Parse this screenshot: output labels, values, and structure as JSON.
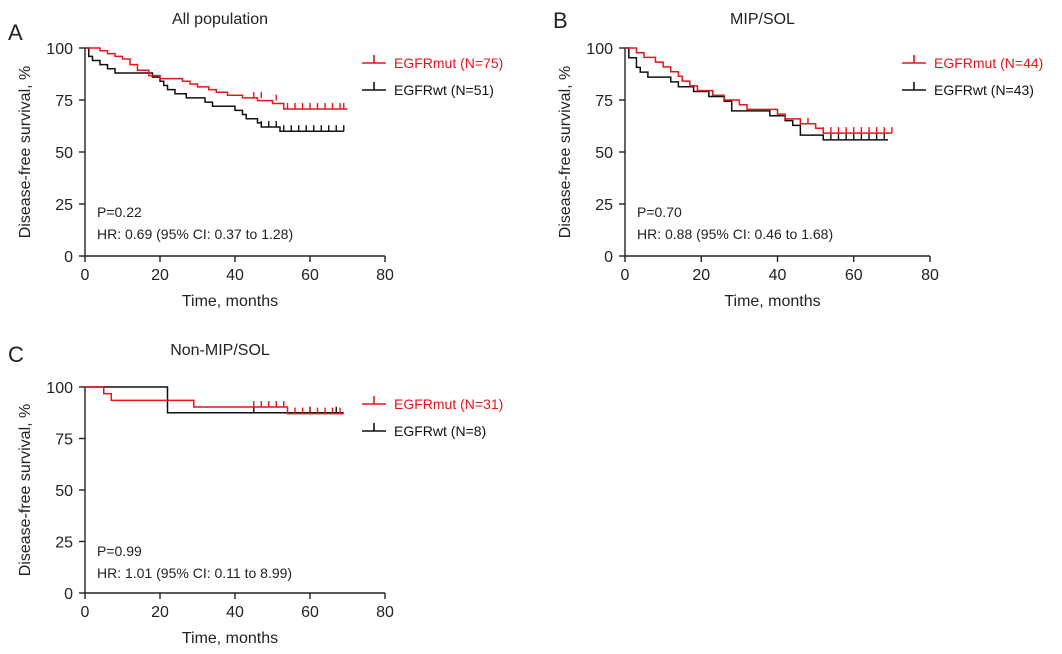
{
  "colors": {
    "mut": "#e8141c",
    "wt": "#111111",
    "axis": "#222222"
  },
  "chart_data": [
    {
      "type": "line",
      "panel_label": "A",
      "title": "All population",
      "xlabel": "Time, months",
      "ylabel": "Disease-free survival, %",
      "xlim": [
        0,
        80
      ],
      "ylim": [
        0,
        100
      ],
      "xticks": [
        "0",
        "20",
        "40",
        "60",
        "80"
      ],
      "yticks": [
        "0",
        "25",
        "50",
        "75",
        "100"
      ],
      "legend_position": "top-right",
      "annotations": [
        "P=0.22",
        "HR: 0.69 (95% CI: 0.37 to 1.28)"
      ],
      "series": [
        {
          "name": "EGFRmut (N=75)",
          "color": "#e8141c",
          "steps": [
            [
              0,
              100
            ],
            [
              4,
              98.7
            ],
            [
              6,
              97.3
            ],
            [
              8,
              96
            ],
            [
              10,
              94.7
            ],
            [
              12,
              92
            ],
            [
              14,
              89.3
            ],
            [
              17,
              86.7
            ],
            [
              20,
              85.3
            ],
            [
              26,
              84
            ],
            [
              28,
              82.7
            ],
            [
              30,
              81.3
            ],
            [
              33,
              80
            ],
            [
              35,
              78.7
            ],
            [
              38,
              77.3
            ],
            [
              42,
              76
            ],
            [
              46,
              74.7
            ],
            [
              50,
              73.3
            ],
            [
              53,
              70.7
            ],
            [
              70,
              70.7
            ]
          ],
          "censors": [
            [
              45,
              76
            ],
            [
              47,
              76
            ],
            [
              51,
              74.7
            ],
            [
              54,
              70.7
            ],
            [
              56,
              70.7
            ],
            [
              58,
              70.7
            ],
            [
              60,
              70.7
            ],
            [
              62,
              70.7
            ],
            [
              64,
              70.7
            ],
            [
              66,
              70.7
            ],
            [
              68,
              70.7
            ],
            [
              69,
              70.7
            ]
          ]
        },
        {
          "name": "EGFRwt (N=51)",
          "color": "#111111",
          "steps": [
            [
              0,
              100
            ],
            [
              1,
              96
            ],
            [
              2,
              94
            ],
            [
              4,
              92
            ],
            [
              6,
              90
            ],
            [
              8,
              88
            ],
            [
              18,
              86
            ],
            [
              20,
              84
            ],
            [
              21,
              82
            ],
            [
              22,
              80
            ],
            [
              24,
              78
            ],
            [
              27,
              76
            ],
            [
              32,
              74
            ],
            [
              34,
              72
            ],
            [
              40,
              70
            ],
            [
              42,
              68
            ],
            [
              43,
              66
            ],
            [
              46,
              64
            ],
            [
              47,
              62
            ],
            [
              52,
              60
            ],
            [
              69,
              60
            ]
          ],
          "censors": [
            [
              47,
              62
            ],
            [
              49,
              62
            ],
            [
              51,
              62
            ],
            [
              53,
              60
            ],
            [
              55,
              60
            ],
            [
              57,
              60
            ],
            [
              59,
              60
            ],
            [
              61,
              60
            ],
            [
              63,
              60
            ],
            [
              65,
              60
            ],
            [
              67,
              60
            ],
            [
              69,
              60
            ]
          ]
        }
      ]
    },
    {
      "type": "line",
      "panel_label": "B",
      "title": "MIP/SOL",
      "xlabel": "Time, months",
      "ylabel": "Disease-free survival, %",
      "xlim": [
        0,
        80
      ],
      "ylim": [
        0,
        100
      ],
      "xticks": [
        "0",
        "20",
        "40",
        "60",
        "80"
      ],
      "yticks": [
        "0",
        "25",
        "50",
        "75",
        "100"
      ],
      "legend_position": "top-right",
      "annotations": [
        "P=0.70",
        "HR: 0.88 (95% CI: 0.46 to 1.68)"
      ],
      "series": [
        {
          "name": "EGFRmut (N=44)",
          "color": "#e8141c",
          "steps": [
            [
              0,
              100
            ],
            [
              3,
              97.7
            ],
            [
              5,
              95.5
            ],
            [
              8,
              93.2
            ],
            [
              10,
              90.9
            ],
            [
              12,
              88.6
            ],
            [
              14,
              86.4
            ],
            [
              15,
              84.1
            ],
            [
              17,
              81.8
            ],
            [
              19,
              79.5
            ],
            [
              23,
              77.3
            ],
            [
              26,
              75
            ],
            [
              30,
              72.7
            ],
            [
              32,
              70.5
            ],
            [
              40,
              68.2
            ],
            [
              42,
              65.9
            ],
            [
              46,
              63.6
            ],
            [
              50,
              61.4
            ],
            [
              52,
              59.1
            ],
            [
              70,
              59.1
            ]
          ],
          "censors": [
            [
              48,
              63.6
            ],
            [
              52,
              59.1
            ],
            [
              54,
              59.1
            ],
            [
              56,
              59.1
            ],
            [
              58,
              59.1
            ],
            [
              60,
              59.1
            ],
            [
              62,
              59.1
            ],
            [
              64,
              59.1
            ],
            [
              66,
              59.1
            ],
            [
              68,
              59.1
            ],
            [
              70,
              59.1
            ]
          ]
        },
        {
          "name": "EGFRwt (N=43)",
          "color": "#111111",
          "steps": [
            [
              0,
              100
            ],
            [
              1,
              95.3
            ],
            [
              3,
              90.7
            ],
            [
              4,
              88.4
            ],
            [
              6,
              86
            ],
            [
              12,
              83.7
            ],
            [
              14,
              81.4
            ],
            [
              18,
              79.1
            ],
            [
              22,
              76.7
            ],
            [
              26,
              74.4
            ],
            [
              28,
              69.8
            ],
            [
              38,
              67.4
            ],
            [
              42,
              65.1
            ],
            [
              44,
              62.8
            ],
            [
              46,
              58.1
            ],
            [
              52,
              55.8
            ],
            [
              69,
              55.8
            ]
          ],
          "censors": [
            [
              54,
              55.8
            ],
            [
              56,
              55.8
            ],
            [
              58,
              55.8
            ],
            [
              60,
              55.8
            ],
            [
              62,
              55.8
            ],
            [
              64,
              55.8
            ],
            [
              66,
              55.8
            ],
            [
              68,
              55.8
            ]
          ]
        }
      ]
    },
    {
      "type": "line",
      "panel_label": "C",
      "title": "Non-MIP/SOL",
      "xlabel": "Time, months",
      "ylabel": "Disease-free survival, %",
      "xlim": [
        0,
        80
      ],
      "ylim": [
        0,
        100
      ],
      "xticks": [
        "0",
        "20",
        "40",
        "60",
        "80"
      ],
      "yticks": [
        "0",
        "25",
        "50",
        "75",
        "100"
      ],
      "legend_position": "top-right",
      "annotations": [
        "P=0.99",
        "HR: 1.01 (95% CI: 0.11 to 8.99)"
      ],
      "series": [
        {
          "name": "EGFRmut (N=31)",
          "color": "#e8141c",
          "steps": [
            [
              0,
              100
            ],
            [
              5,
              96.8
            ],
            [
              7,
              93.5
            ],
            [
              29,
              90.3
            ],
            [
              54,
              87.1
            ],
            [
              69,
              87.1
            ]
          ],
          "censors": [
            [
              45,
              90.3
            ],
            [
              47,
              90.3
            ],
            [
              49,
              90.3
            ],
            [
              51,
              90.3
            ],
            [
              53,
              90.3
            ],
            [
              56,
              87.1
            ],
            [
              58,
              87.1
            ],
            [
              60,
              87.1
            ],
            [
              62,
              87.1
            ],
            [
              64,
              87.1
            ],
            [
              66,
              87.1
            ],
            [
              68,
              87.1
            ]
          ]
        },
        {
          "name": "EGFRwt (N=8)",
          "color": "#111111",
          "steps": [
            [
              0,
              100
            ],
            [
              22,
              87.5
            ],
            [
              69,
              87.5
            ]
          ],
          "censors": [
            [
              45,
              87.5
            ],
            [
              60,
              87.5
            ],
            [
              67,
              87.5
            ]
          ]
        }
      ]
    }
  ]
}
